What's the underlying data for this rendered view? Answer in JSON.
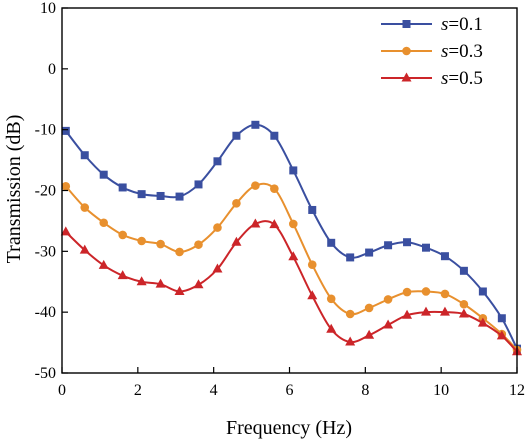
{
  "chart_data": {
    "type": "line",
    "title": "",
    "xlabel": "Frequency (Hz)",
    "ylabel": "Transmission (dB)",
    "xlim": [
      0,
      12
    ],
    "ylim": [
      -50,
      10
    ],
    "xticks": [
      0,
      2,
      4,
      6,
      8,
      10,
      12
    ],
    "yticks": [
      10,
      0,
      -10,
      -20,
      -30,
      -40,
      -50
    ],
    "grid": false,
    "legend_position": "top-right",
    "x": [
      0.1,
      0.6,
      1.1,
      1.6,
      2.1,
      2.6,
      3.1,
      3.6,
      4.1,
      4.6,
      5.1,
      5.6,
      6.1,
      6.6,
      7.1,
      7.6,
      8.1,
      8.6,
      9.1,
      9.6,
      10.1,
      10.6,
      11.1,
      11.6,
      12.0
    ],
    "series": [
      {
        "name": "s=0.1",
        "legend_symbol": "s",
        "legend_value": "=0.1",
        "color": "#3a4fa0",
        "marker": "square",
        "values": [
          -10.2,
          -14.2,
          -17.4,
          -19.5,
          -20.6,
          -20.9,
          -21.0,
          -19.0,
          -15.2,
          -11.0,
          -9.2,
          -11.0,
          -16.7,
          -23.2,
          -28.6,
          -31.0,
          -30.2,
          -29.0,
          -28.5,
          -29.4,
          -30.8,
          -33.2,
          -36.6,
          -41.0,
          -46.0
        ]
      },
      {
        "name": "s=0.3",
        "legend_symbol": "s",
        "legend_value": "=0.3",
        "color": "#e8902e",
        "marker": "circle",
        "values": [
          -19.3,
          -22.8,
          -25.3,
          -27.3,
          -28.3,
          -28.8,
          -30.1,
          -28.9,
          -26.1,
          -22.1,
          -19.2,
          -19.7,
          -25.5,
          -32.2,
          -37.8,
          -40.3,
          -39.3,
          -37.9,
          -36.7,
          -36.6,
          -37.0,
          -38.7,
          -41.0,
          -43.6,
          -46.2
        ]
      },
      {
        "name": "s=0.5",
        "legend_symbol": "s",
        "legend_value": "=0.5",
        "color": "#cc2529",
        "marker": "triangle",
        "values": [
          -26.8,
          -29.8,
          -32.3,
          -34.0,
          -35.0,
          -35.4,
          -36.6,
          -35.5,
          -32.9,
          -28.5,
          -25.5,
          -25.6,
          -30.9,
          -37.3,
          -42.8,
          -44.9,
          -43.8,
          -42.1,
          -40.5,
          -40.0,
          -40.0,
          -40.3,
          -41.8,
          -43.9,
          -46.5
        ]
      }
    ]
  }
}
